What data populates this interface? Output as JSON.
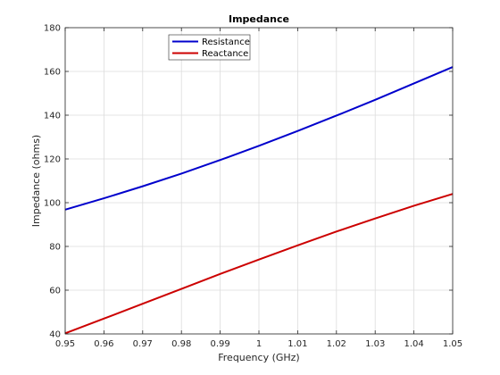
{
  "chart_data": {
    "type": "line",
    "title": "Impedance",
    "xlabel": "Frequency (GHz)",
    "ylabel": "Impedance (ohms)",
    "xlim": [
      0.95,
      1.05
    ],
    "ylim": [
      40,
      180
    ],
    "xticks": [
      0.95,
      0.96,
      0.97,
      0.98,
      0.99,
      1,
      1.01,
      1.02,
      1.03,
      1.04,
      1.05
    ],
    "xtick_labels": [
      "0.95",
      "0.96",
      "0.97",
      "0.98",
      "0.99",
      "1",
      "1.01",
      "1.02",
      "1.03",
      "1.04",
      "1.05"
    ],
    "yticks": [
      40,
      60,
      80,
      100,
      120,
      140,
      160,
      180
    ],
    "ytick_labels": [
      "40",
      "60",
      "80",
      "100",
      "120",
      "140",
      "160",
      "180"
    ],
    "grid": true,
    "legend_position": "top-center",
    "x": [
      0.95,
      0.96,
      0.97,
      0.98,
      0.99,
      1.0,
      1.01,
      1.02,
      1.03,
      1.04,
      1.05
    ],
    "series": [
      {
        "name": "Resistance",
        "color": "#0000cc",
        "values": [
          96.8,
          102.0,
          107.5,
          113.3,
          119.5,
          126.0,
          132.8,
          139.8,
          147.0,
          154.5,
          162.0
        ]
      },
      {
        "name": "Reactance",
        "color": "#cc0000",
        "values": [
          40.3,
          47.0,
          53.8,
          60.6,
          67.4,
          74.0,
          80.5,
          86.8,
          92.8,
          98.6,
          104.0
        ]
      }
    ]
  }
}
